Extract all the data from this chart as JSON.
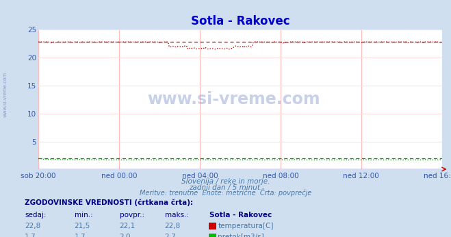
{
  "title": "Sotla - Rakovec",
  "title_color": "#0000cc",
  "bg_color": "#d0dff0",
  "plot_bg_color": "#ffffff",
  "grid_color_v": "#ffaaaa",
  "grid_color_h": "#ffcccc",
  "x_tick_labels": [
    "sob 20:00",
    "ned 00:00",
    "ned 04:00",
    "ned 08:00",
    "ned 12:00",
    "ned 16:00"
  ],
  "x_tick_positions": [
    0,
    72,
    144,
    216,
    288,
    360
  ],
  "n_points": 433,
  "temp_mean": 22.1,
  "temp_min": 21.5,
  "temp_max": 22.8,
  "temp_current": 22.8,
  "flow_mean": 2.0,
  "flow_min": 1.7,
  "flow_max": 2.7,
  "flow_current": 1.7,
  "temp_color": "#cc0000",
  "flow_color": "#00aa00",
  "height_color": "#0000cc",
  "axis_color": "#3355aa",
  "text_color": "#4477aa",
  "watermark_color": "#5577aa",
  "ylim": [
    0,
    25
  ],
  "yticks": [
    5,
    10,
    15,
    20,
    25
  ],
  "subtitle1": "Slovenija / reke in morje.",
  "subtitle2": "zadnji dan / 5 minut.",
  "subtitle3": "Meritve: trenutne  Enote: metrične  Črta: povprečje",
  "table_header": "ZGODOVINSKE VREDNOSTI (črtkana črta):",
  "col1": "sedaj:",
  "col2": "min.:",
  "col3": "povpr.:",
  "col4": "maks.:",
  "col5": "Sotla - Rakovec",
  "row1": [
    "22,8",
    "21,5",
    "22,1",
    "22,8",
    "temperatura[C]"
  ],
  "row2": [
    "1,7",
    "1,7",
    "2,0",
    "2,7",
    "pretok[m3/s]"
  ]
}
